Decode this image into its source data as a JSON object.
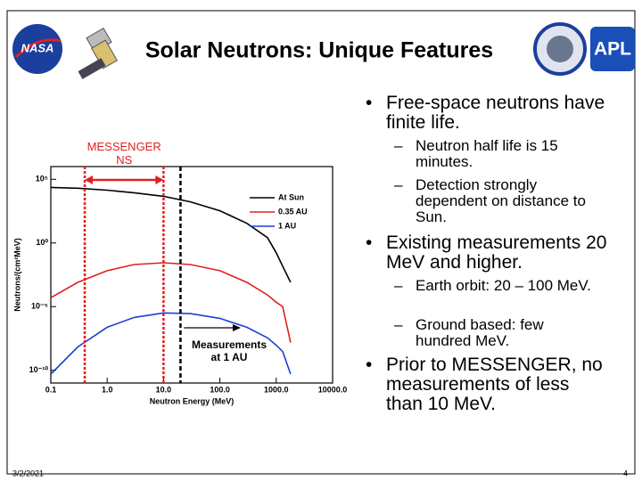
{
  "header": {
    "title": "Solar Neutrons: Unique Features",
    "logos": {
      "nasa": "NASA",
      "apl": "APL"
    }
  },
  "bullets": [
    {
      "text": "Free-space neutrons have finite life.",
      "sub": [
        "Neutron half life is 15 minutes.",
        "Detection strongly dependent on distance to Sun."
      ]
    },
    {
      "text": "Existing measurements 20 MeV and higher.",
      "sub": [
        "Earth orbit: 20 – 100 MeV.",
        "Ground based: few hundred MeV."
      ]
    },
    {
      "text": "Prior to MESSENGER, no measurements of less than 10 MeV.",
      "sub": []
    }
  ],
  "footer": {
    "date": "3/2/2021",
    "page": "4"
  },
  "chart_data": {
    "type": "line",
    "x_label": "Neutron Energy (MeV)",
    "y_label": "Neutrons/(cm²MeV)",
    "x": [
      0.1,
      0.3,
      1,
      3,
      10,
      30,
      100,
      300,
      700,
      1000,
      1300,
      1800
    ],
    "series": [
      {
        "name": "At Sun",
        "color": "#000000",
        "values": [
          23000,
          20000,
          14000,
          8800,
          4600,
          1700,
          340,
          35,
          2.6,
          0.17,
          0.015,
          0.0008
        ]
      },
      {
        "name": "0.35 AU",
        "color": "#e02020",
        "values": [
          5e-05,
          0.0008,
          0.0066,
          0.02,
          0.028,
          0.02,
          0.0066,
          0.0008,
          8.3e-05,
          2.2e-05,
          1e-05,
          1.5e-08
        ]
      },
      {
        "name": "1 AU",
        "color": "#1f3fd0",
        "values": [
          5e-11,
          6.8e-09,
          2.4e-07,
          1.4e-06,
          3.2e-06,
          2.8e-06,
          1.2e-06,
          2.4e-07,
          3.5e-08,
          9.3e-09,
          3e-09,
          5e-11
        ]
      }
    ],
    "xlog": true,
    "ylog": true,
    "xlim": [
      0.1,
      10000
    ],
    "ylim": [
      1e-11,
      1000000
    ],
    "xticks": [
      0.1,
      {
        "value": 1,
        "label": "1.0"
      },
      {
        "value": 10,
        "label": "10.0"
      },
      {
        "value": 100,
        "label": "100.0"
      },
      {
        "value": 1000,
        "label": "1000.0"
      },
      {
        "value": 10000,
        "label": "10000.0"
      }
    ],
    "yticks": [
      {
        "value": 100000,
        "label": "10⁵"
      },
      {
        "value": 1,
        "label": "10⁰"
      },
      {
        "value": 1e-05,
        "label": "10⁻⁵"
      },
      {
        "value": 1e-10,
        "label": "10⁻¹⁰"
      }
    ],
    "legend": "upper right",
    "messenger_range": {
      "label": "MESSENGER NS",
      "values": [
        0.4,
        10
      ],
      "color": "#e02020"
    },
    "measurement_line": {
      "label": "Measurements at 1 AU",
      "value": 20
    }
  }
}
